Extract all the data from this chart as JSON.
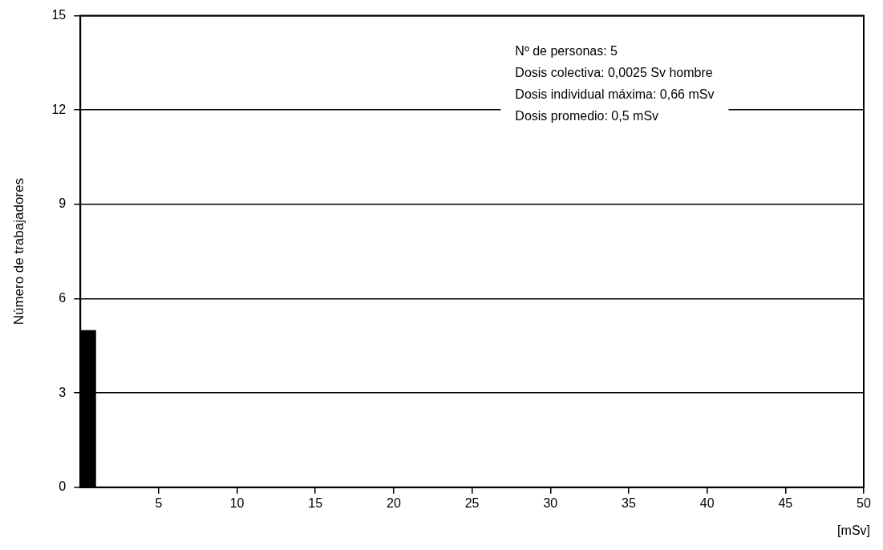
{
  "chart_data": {
    "type": "histogram",
    "bins": [
      0,
      1
    ],
    "values": [
      5
    ],
    "color": "#000000",
    "xlabel": "[mSv]",
    "ylabel": "Número de trabajadores",
    "xlim": [
      0,
      50
    ],
    "xticks": [
      5,
      10,
      15,
      20,
      25,
      30,
      35,
      40,
      45,
      50
    ],
    "ylim": [
      0,
      15
    ],
    "yticks": [
      0,
      3,
      6,
      9,
      12,
      15
    ],
    "grid": "y",
    "annotations": [
      "Nº de personas: 5",
      "Dosis colectiva: 0,0025 Sv hombre",
      "Dosis individual máxima: 0,66 mSv",
      "Dosis promedio: 0,5 mSv"
    ]
  }
}
